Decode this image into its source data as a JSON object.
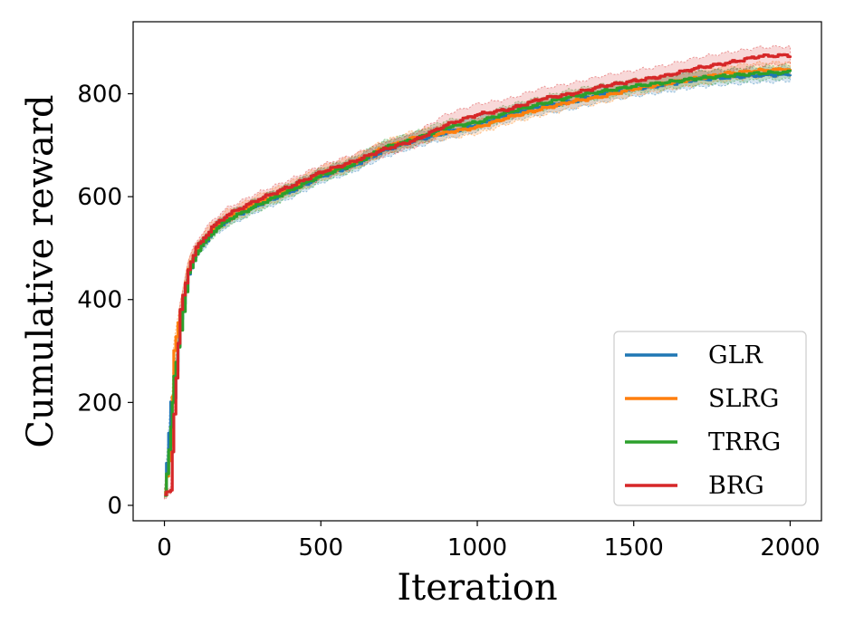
{
  "chart_data": {
    "type": "line",
    "xlabel": "Iteration",
    "ylabel": "Cumulative reward",
    "xlim": [
      -100,
      2100
    ],
    "ylim": [
      -30,
      940
    ],
    "xticks": [
      0,
      500,
      1000,
      1500,
      2000
    ],
    "yticks": [
      0,
      200,
      400,
      600,
      800
    ],
    "grid": false,
    "legend_position": "lower-right",
    "shaded_band": "min-max across runs",
    "series": [
      {
        "name": "GLR",
        "color": "#1f77b4",
        "x": [
          0,
          20,
          30,
          50,
          75,
          100,
          150,
          200,
          300,
          400,
          500,
          600,
          700,
          800,
          900,
          1000,
          1100,
          1200,
          1300,
          1400,
          1500,
          1600,
          1700,
          1800,
          1900,
          2000
        ],
        "y": [
          20,
          200,
          210,
          360,
          450,
          490,
          530,
          555,
          585,
          610,
          640,
          660,
          690,
          710,
          725,
          740,
          760,
          775,
          785,
          800,
          810,
          818,
          828,
          832,
          836,
          838
        ],
        "lower": [
          15,
          190,
          200,
          345,
          440,
          478,
          518,
          542,
          572,
          596,
          627,
          647,
          676,
          696,
          712,
          727,
          746,
          760,
          770,
          785,
          795,
          803,
          813,
          818,
          822,
          825
        ],
        "upper": [
          25,
          210,
          220,
          375,
          460,
          502,
          542,
          568,
          598,
          624,
          653,
          673,
          704,
          724,
          738,
          754,
          774,
          790,
          800,
          815,
          825,
          833,
          843,
          846,
          850,
          852
        ]
      },
      {
        "name": "SLRG",
        "color": "#ff7f0e",
        "x": [
          0,
          20,
          30,
          50,
          75,
          100,
          150,
          200,
          300,
          400,
          500,
          600,
          700,
          800,
          900,
          1000,
          1100,
          1200,
          1300,
          1400,
          1500,
          1600,
          1700,
          1800,
          1900,
          2000
        ],
        "y": [
          25,
          120,
          300,
          380,
          460,
          495,
          535,
          560,
          590,
          615,
          645,
          665,
          695,
          715,
          725,
          735,
          755,
          770,
          785,
          795,
          810,
          820,
          830,
          840,
          845,
          848
        ],
        "lower": [
          18,
          105,
          285,
          365,
          448,
          482,
          522,
          547,
          577,
          602,
          632,
          652,
          682,
          702,
          712,
          722,
          742,
          757,
          772,
          782,
          797,
          807,
          817,
          826,
          832,
          835
        ],
        "upper": [
          32,
          135,
          315,
          395,
          472,
          508,
          548,
          573,
          603,
          628,
          658,
          678,
          708,
          728,
          740,
          750,
          770,
          785,
          800,
          810,
          825,
          835,
          845,
          854,
          860,
          862
        ]
      },
      {
        "name": "TRRG",
        "color": "#2ca02c",
        "x": [
          0,
          20,
          30,
          50,
          75,
          100,
          150,
          200,
          300,
          400,
          500,
          600,
          700,
          800,
          900,
          1000,
          1100,
          1200,
          1300,
          1400,
          1500,
          1600,
          1700,
          1800,
          1900,
          2000
        ],
        "y": [
          20,
          150,
          250,
          340,
          450,
          490,
          530,
          555,
          585,
          612,
          642,
          662,
          695,
          712,
          735,
          745,
          765,
          780,
          795,
          805,
          815,
          822,
          830,
          835,
          840,
          842
        ],
        "lower": [
          14,
          138,
          236,
          326,
          438,
          478,
          518,
          543,
          572,
          599,
          629,
          649,
          682,
          699,
          722,
          732,
          752,
          767,
          782,
          792,
          802,
          809,
          817,
          822,
          827,
          829
        ],
        "upper": [
          26,
          162,
          264,
          354,
          462,
          502,
          542,
          567,
          598,
          625,
          655,
          675,
          708,
          725,
          748,
          758,
          778,
          793,
          808,
          818,
          828,
          835,
          843,
          848,
          853,
          856
        ]
      },
      {
        "name": "BRG",
        "color": "#d62728",
        "x": [
          0,
          20,
          30,
          50,
          75,
          100,
          150,
          200,
          300,
          400,
          500,
          600,
          700,
          800,
          900,
          1000,
          1100,
          1200,
          1300,
          1400,
          1500,
          1600,
          1700,
          1800,
          1900,
          2000
        ],
        "y": [
          20,
          30,
          180,
          380,
          460,
          500,
          540,
          565,
          595,
          620,
          648,
          668,
          692,
          710,
          740,
          760,
          770,
          790,
          800,
          815,
          825,
          835,
          850,
          860,
          873,
          875
        ],
        "lower": [
          14,
          22,
          165,
          365,
          448,
          488,
          528,
          552,
          582,
          607,
          635,
          655,
          679,
          697,
          722,
          742,
          752,
          772,
          782,
          797,
          807,
          817,
          832,
          842,
          855,
          858
        ],
        "upper": [
          26,
          38,
          195,
          395,
          472,
          512,
          552,
          578,
          608,
          633,
          661,
          681,
          705,
          723,
          760,
          780,
          790,
          810,
          820,
          835,
          845,
          855,
          870,
          880,
          890,
          892
        ]
      }
    ]
  }
}
